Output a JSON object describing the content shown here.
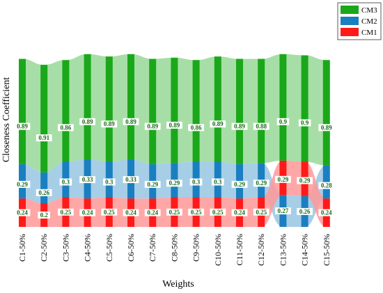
{
  "chart_data": {
    "type": "bar",
    "stacked": true,
    "xlabel": "Weights",
    "ylabel": "Closeness Coefficient",
    "categories": [
      "C1-50%",
      "C2-50%",
      "C3-50%",
      "C4-50%",
      "C5-50%",
      "C6-50%",
      "C7-50%",
      "C8-50%",
      "C9-50%",
      "C10-50%",
      "C11-50%",
      "C12-50%",
      "C13-50%",
      "C14-50%",
      "C15-50%"
    ],
    "stack_order": [
      [
        "CM1",
        "CM2",
        "CM3"
      ],
      [
        "CM1",
        "CM2",
        "CM3"
      ],
      [
        "CM1",
        "CM2",
        "CM3"
      ],
      [
        "CM1",
        "CM2",
        "CM3"
      ],
      [
        "CM1",
        "CM2",
        "CM3"
      ],
      [
        "CM1",
        "CM2",
        "CM3"
      ],
      [
        "CM1",
        "CM2",
        "CM3"
      ],
      [
        "CM1",
        "CM2",
        "CM3"
      ],
      [
        "CM1",
        "CM2",
        "CM3"
      ],
      [
        "CM1",
        "CM2",
        "CM3"
      ],
      [
        "CM1",
        "CM2",
        "CM3"
      ],
      [
        "CM1",
        "CM2",
        "CM3"
      ],
      [
        "CM2",
        "CM1",
        "CM3"
      ],
      [
        "CM2",
        "CM1",
        "CM3"
      ],
      [
        "CM1",
        "CM2",
        "CM3"
      ]
    ],
    "series": [
      {
        "name": "CM1",
        "color": "#ff1a1a",
        "values": [
          0.24,
          0.2,
          0.25,
          0.24,
          0.25,
          0.24,
          0.24,
          0.25,
          0.25,
          0.25,
          0.24,
          0.25,
          0.29,
          0.29,
          0.24
        ]
      },
      {
        "name": "CM2",
        "color": "#1a7fc0",
        "values": [
          0.29,
          0.26,
          0.3,
          0.33,
          0.3,
          0.33,
          0.29,
          0.29,
          0.3,
          0.3,
          0.29,
          0.29,
          0.27,
          0.26,
          0.28
        ]
      },
      {
        "name": "CM3",
        "color": "#1aa81a",
        "values": [
          0.89,
          0.91,
          0.86,
          0.89,
          0.89,
          0.89,
          0.89,
          0.89,
          0.86,
          0.89,
          0.89,
          0.88,
          0.9,
          0.9,
          0.89
        ]
      }
    ],
    "legend": {
      "position": "top-right",
      "order": [
        "CM3",
        "CM2",
        "CM1"
      ]
    },
    "grid": false
  }
}
